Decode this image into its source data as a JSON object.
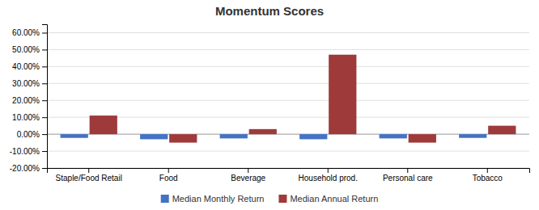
{
  "chart_data": {
    "type": "bar",
    "title": "Momentum Scores",
    "categories": [
      "Staple/Food Retail",
      "Food",
      "Beverage",
      "Household prod.",
      "Personal care",
      "Tobacco"
    ],
    "series": [
      {
        "name": "Median Monthly Return",
        "color": "#4472C4",
        "values": [
          -0.022,
          -0.03,
          -0.025,
          -0.03,
          -0.025,
          -0.022
        ]
      },
      {
        "name": "Median Annual Return",
        "color": "#9E3A3A",
        "values": [
          0.11,
          -0.05,
          0.03,
          0.47,
          -0.05,
          0.05
        ]
      }
    ],
    "ylim": [
      -0.2,
      0.65
    ],
    "yticks": [
      {
        "value": -0.2,
        "label": "-20.00%"
      },
      {
        "value": -0.1,
        "label": "-10.00%"
      },
      {
        "value": 0.0,
        "label": "0.00%"
      },
      {
        "value": 0.1,
        "label": "10.00%"
      },
      {
        "value": 0.2,
        "label": "20.00%"
      },
      {
        "value": 0.3,
        "label": "30.00%"
      },
      {
        "value": 0.4,
        "label": "40.00%"
      },
      {
        "value": 0.5,
        "label": "50.00%"
      },
      {
        "value": 0.6,
        "label": "60.00%"
      }
    ],
    "grid": true,
    "legend": "bottom"
  }
}
